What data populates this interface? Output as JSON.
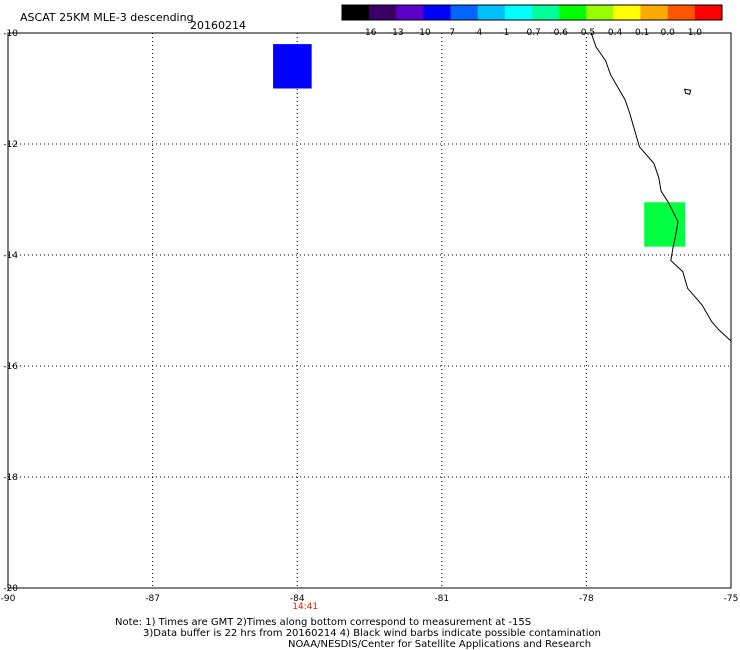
{
  "title": "ASCAT 25KM MLE-3 descending",
  "date": "20160214",
  "colorbar": {
    "labels": [
      "-16",
      "-13",
      "-10",
      "-7",
      "-4",
      "-1",
      "-0.7",
      "-0.6",
      "-0.5",
      "-0.4",
      "-0.1",
      "0.0",
      "1.0"
    ],
    "colors": [
      "#000000",
      "#3a0066",
      "#5a00c8",
      "#0000ff",
      "#0066ff",
      "#00c0ff",
      "#00ffff",
      "#00ff99",
      "#00ff00",
      "#99ff00",
      "#ffff00",
      "#ffaa00",
      "#ff5500",
      "#ff0000"
    ]
  },
  "axes": {
    "lon_ticks": [
      "-90",
      "-87",
      "-84",
      "-81",
      "-78",
      "-75"
    ],
    "lat_ticks": [
      "-10",
      "-12",
      "-14",
      "-16",
      "-18",
      "-20"
    ],
    "lon_range": [
      -90,
      -75
    ],
    "lat_range": [
      -10,
      -20
    ]
  },
  "time_label": {
    "text": "14:41",
    "lon": -84,
    "color": "#cc2200"
  },
  "cells": [
    {
      "name": "cell-blue",
      "lon_range": [
        -84.5,
        -83.7
      ],
      "lat_range": [
        -10.2,
        -11.0
      ],
      "color": "#0000ff"
    },
    {
      "name": "cell-green",
      "lon_range": [
        -76.8,
        -75.95
      ],
      "lat_range": [
        -13.05,
        -13.85
      ],
      "color": "#00ff40"
    }
  ],
  "coastline": [
    [
      -77.9,
      -10.0
    ],
    [
      -77.8,
      -10.25
    ],
    [
      -77.6,
      -10.5
    ],
    [
      -77.5,
      -10.75
    ],
    [
      -77.3,
      -11.05
    ],
    [
      -77.2,
      -11.2
    ],
    [
      -77.1,
      -11.45
    ],
    [
      -77.0,
      -11.75
    ],
    [
      -76.9,
      -12.05
    ],
    [
      -76.6,
      -12.35
    ],
    [
      -76.5,
      -12.6
    ],
    [
      -76.45,
      -12.85
    ],
    [
      -76.3,
      -13.05
    ],
    [
      -76.1,
      -13.4
    ],
    [
      -76.15,
      -13.65
    ],
    [
      -76.2,
      -13.85
    ],
    [
      -76.25,
      -14.1
    ],
    [
      -76.0,
      -14.3
    ],
    [
      -75.9,
      -14.6
    ],
    [
      -75.6,
      -14.9
    ],
    [
      -75.4,
      -15.2
    ],
    [
      -75.25,
      -15.35
    ],
    [
      -75.0,
      -15.55
    ]
  ],
  "islet": {
    "lon": -75.9,
    "lat": -11.05
  },
  "notes": {
    "line1": "Note: 1) Times are GMT 2)Times along bottom correspond to measurement at -15S",
    "line2": "3)Data buffer is 22 hrs from 20160214 4) Black wind barbs indicate possible contamination",
    "line3": "NOAA/NESDIS/Center for Satellite Applications and Research"
  }
}
